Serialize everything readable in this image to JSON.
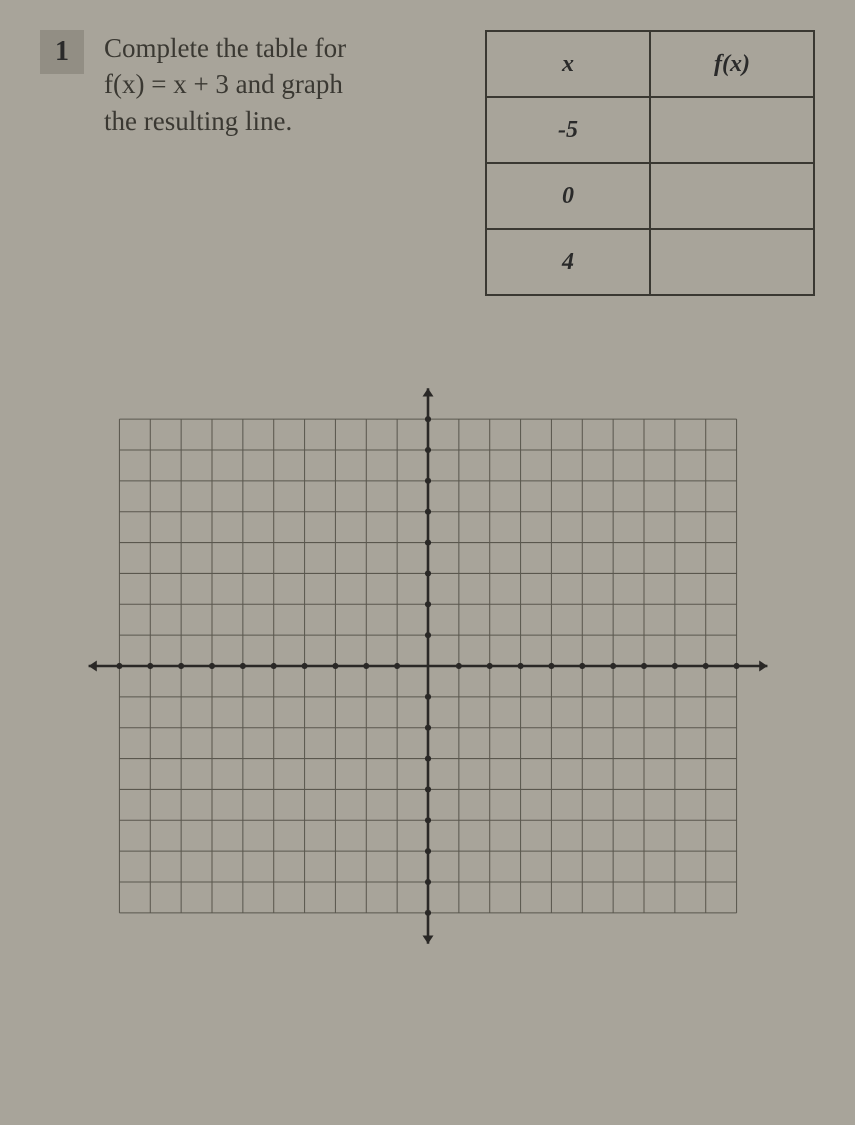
{
  "question": {
    "number": "1",
    "text_line1": "Complete the table for",
    "text_line2": "f(x) = x + 3 and graph",
    "text_line3": "the resulting line."
  },
  "table": {
    "headers": [
      "x",
      "f(x)"
    ],
    "rows": [
      [
        "-5",
        ""
      ],
      [
        "0",
        ""
      ],
      [
        "4",
        ""
      ]
    ],
    "border_color": "#3a3832",
    "text_color": "#2a2a2a"
  },
  "graph": {
    "type": "coordinate-grid",
    "xlim": [
      -10,
      10
    ],
    "ylim": [
      -8,
      8
    ],
    "xtick_step": 1,
    "ytick_step": 1,
    "grid_color": "#5a574e",
    "axis_color": "#2a2826",
    "background_color": "#a8a49a",
    "cell_size": 30,
    "cells_x": 20,
    "cells_y": 16,
    "axis_tick_size": 3,
    "arrow_size": 8
  },
  "colors": {
    "page_bg": "#a8a49a",
    "text": "#3a3832",
    "number_bg": "#928e84"
  }
}
